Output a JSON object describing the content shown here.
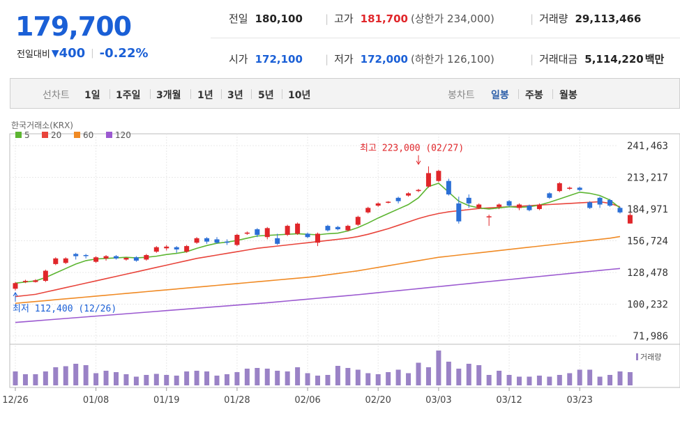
{
  "quote": {
    "price": "179,700",
    "change_label": "전일대비",
    "change_arrow": "▼",
    "change_amount": "400",
    "change_pct": "-0.22%"
  },
  "info": {
    "prev_label": "전일",
    "prev_value": "180,100",
    "high_label": "고가",
    "high_value": "181,700",
    "upper_limit": "(상한가 234,000)",
    "volume_label": "거래량",
    "volume_value": "29,113,466",
    "open_label": "시가",
    "open_value": "172,100",
    "low_label": "저가",
    "low_value": "172,000",
    "lower_limit": "(하한가 126,100)",
    "amount_label": "거래대금",
    "amount_value": "5,114,220",
    "amount_unit": "백만"
  },
  "toolbar": {
    "line_chart": "선차트",
    "periods": [
      "1일",
      "1주일",
      "3개월",
      "1년",
      "3년",
      "5년",
      "10년"
    ],
    "candle_chart": "봉차트",
    "candle_periods": [
      "일봉",
      "주봉",
      "월봉"
    ]
  },
  "chart_data": {
    "type": "candlestick",
    "source": "한국거래소(KRX)",
    "legend": [
      {
        "name": "5",
        "color": "#5cb531"
      },
      {
        "name": "20",
        "color": "#e8443b"
      },
      {
        "name": "60",
        "color": "#f08a24"
      },
      {
        "name": "120",
        "color": "#9b59d0"
      }
    ],
    "y_ticks": [
      "241,463",
      "213,217",
      "184,971",
      "156,724",
      "128,478",
      "100,232",
      "71,986"
    ],
    "ylim": [
      71986,
      241463
    ],
    "x_ticks": [
      "12/26",
      "01/08",
      "01/19",
      "01/28",
      "02/06",
      "02/20",
      "03/03",
      "03/12",
      "03/23"
    ],
    "x_tick_index": [
      0,
      8,
      15,
      22,
      29,
      36,
      42,
      49,
      56
    ],
    "high_annotation": "최고 223,000 (02/27)",
    "high_index": 40,
    "high_value": 223000,
    "low_annotation": "최저 112,400 (12/26)",
    "low_index": 0,
    "low_value": 112400,
    "volume_label": "거래량",
    "candles": [
      {
        "o": 114000,
        "c": 119000,
        "h": 120000,
        "l": 112400
      },
      {
        "o": 120000,
        "c": 121000,
        "h": 122000,
        "l": 119000
      },
      {
        "o": 120000,
        "c": 121500,
        "h": 122500,
        "l": 119500
      },
      {
        "o": 121000,
        "c": 130000,
        "h": 131000,
        "l": 120000
      },
      {
        "o": 136000,
        "c": 141000,
        "h": 142000,
        "l": 135000
      },
      {
        "o": 137000,
        "c": 141000,
        "h": 142000,
        "l": 136000
      },
      {
        "o": 145000,
        "c": 143000,
        "h": 146000,
        "l": 140000
      },
      {
        "o": 144000,
        "c": 143500,
        "h": 145000,
        "l": 141000
      },
      {
        "o": 138000,
        "c": 142000,
        "h": 143000,
        "l": 137000
      },
      {
        "o": 141000,
        "c": 143000,
        "h": 144000,
        "l": 139000
      },
      {
        "o": 143000,
        "c": 141000,
        "h": 144000,
        "l": 140000
      },
      {
        "o": 140000,
        "c": 141500,
        "h": 142000,
        "l": 139000
      },
      {
        "o": 142000,
        "c": 139000,
        "h": 143000,
        "l": 138000
      },
      {
        "o": 140000,
        "c": 144000,
        "h": 145000,
        "l": 139000
      },
      {
        "o": 147000,
        "c": 151000,
        "h": 152000,
        "l": 146000
      },
      {
        "o": 150000,
        "c": 151500,
        "h": 153000,
        "l": 148000
      },
      {
        "o": 151000,
        "c": 149000,
        "h": 152000,
        "l": 146000
      },
      {
        "o": 147000,
        "c": 152000,
        "h": 153000,
        "l": 146000
      },
      {
        "o": 155000,
        "c": 159000,
        "h": 160000,
        "l": 154000
      },
      {
        "o": 159000,
        "c": 156000,
        "h": 160000,
        "l": 154000
      },
      {
        "o": 158000,
        "c": 155000,
        "h": 160000,
        "l": 154000
      },
      {
        "o": 156000,
        "c": 155000,
        "h": 158000,
        "l": 153000
      },
      {
        "o": 153000,
        "c": 162000,
        "h": 163000,
        "l": 152000
      },
      {
        "o": 163000,
        "c": 164000,
        "h": 165000,
        "l": 162000
      },
      {
        "o": 167000,
        "c": 162000,
        "h": 168000,
        "l": 160000
      },
      {
        "o": 160000,
        "c": 168000,
        "h": 169000,
        "l": 158000
      },
      {
        "o": 159000,
        "c": 154000,
        "h": 163000,
        "l": 153000
      },
      {
        "o": 162000,
        "c": 170000,
        "h": 171000,
        "l": 161000
      },
      {
        "o": 163000,
        "c": 172000,
        "h": 173000,
        "l": 162000
      },
      {
        "o": 163000,
        "c": 160000,
        "h": 164000,
        "l": 159000
      },
      {
        "o": 155000,
        "c": 163000,
        "h": 164000,
        "l": 152000
      },
      {
        "o": 170000,
        "c": 166000,
        "h": 171000,
        "l": 165000
      },
      {
        "o": 169000,
        "c": 167000,
        "h": 170000,
        "l": 166000
      },
      {
        "o": 166000,
        "c": 170000,
        "h": 171000,
        "l": 165000
      },
      {
        "o": 171000,
        "c": 178000,
        "h": 179000,
        "l": 170000
      },
      {
        "o": 182000,
        "c": 186000,
        "h": 187000,
        "l": 181000
      },
      {
        "o": 188000,
        "c": 190000,
        "h": 191000,
        "l": 187000
      },
      {
        "o": 191000,
        "c": 191500,
        "h": 192000,
        "l": 190000
      },
      {
        "o": 195000,
        "c": 192000,
        "h": 196000,
        "l": 190000
      },
      {
        "o": 197000,
        "c": 199000,
        "h": 200000,
        "l": 196000
      },
      {
        "o": 201000,
        "c": 202000,
        "h": 203000,
        "l": 200000
      },
      {
        "o": 205000,
        "c": 217000,
        "h": 223000,
        "l": 204000
      },
      {
        "o": 210000,
        "c": 219000,
        "h": 220000,
        "l": 209000
      },
      {
        "o": 210000,
        "c": 198000,
        "h": 212000,
        "l": 197000
      },
      {
        "o": 190000,
        "c": 174000,
        "h": 196000,
        "l": 172000
      },
      {
        "o": 195000,
        "c": 190000,
        "h": 198000,
        "l": 186000
      },
      {
        "o": 186000,
        "c": 189000,
        "h": 190000,
        "l": 185000
      },
      {
        "o": 178000,
        "c": 178500,
        "h": 180000,
        "l": 170000
      },
      {
        "o": 187000,
        "c": 189000,
        "h": 190000,
        "l": 185000
      },
      {
        "o": 192000,
        "c": 188000,
        "h": 193000,
        "l": 187000
      },
      {
        "o": 186000,
        "c": 189000,
        "h": 190000,
        "l": 184000
      },
      {
        "o": 188000,
        "c": 184000,
        "h": 189000,
        "l": 183000
      },
      {
        "o": 185000,
        "c": 189000,
        "h": 190000,
        "l": 184000
      },
      {
        "o": 199000,
        "c": 195000,
        "h": 200000,
        "l": 194000
      },
      {
        "o": 201000,
        "c": 208000,
        "h": 209000,
        "l": 200000
      },
      {
        "o": 203000,
        "c": 204000,
        "h": 205000,
        "l": 202000
      },
      {
        "o": 204000,
        "c": 202000,
        "h": 205000,
        "l": 201000
      },
      {
        "o": 191000,
        "c": 186000,
        "h": 192000,
        "l": 185000
      },
      {
        "o": 195000,
        "c": 189000,
        "h": 196000,
        "l": 186000
      },
      {
        "o": 193000,
        "c": 188000,
        "h": 194000,
        "l": 187000
      },
      {
        "o": 186000,
        "c": 182000,
        "h": 187000,
        "l": 181000
      },
      {
        "o": 172100,
        "c": 179700,
        "h": 181700,
        "l": 172000
      }
    ],
    "ma5": [
      119000,
      120000,
      121000,
      124000,
      128000,
      132000,
      136000,
      139000,
      140500,
      141000,
      141500,
      142000,
      141500,
      142000,
      143000,
      144500,
      145500,
      147000,
      150000,
      152500,
      154500,
      155500,
      157000,
      159000,
      161000,
      161500,
      162000,
      162500,
      163000,
      162500,
      162000,
      163000,
      163500,
      165500,
      168500,
      172500,
      177000,
      181000,
      185000,
      189000,
      195000,
      205000,
      208000,
      200000,
      192000,
      188000,
      186000,
      185000,
      186000,
      187000,
      186500,
      187000,
      188500,
      191000,
      194000,
      197000,
      200000,
      199000,
      197000,
      193000,
      186000
    ],
    "ma20": [
      107000,
      108000,
      109000,
      111000,
      113000,
      115000,
      117000,
      119000,
      121000,
      123000,
      125000,
      127000,
      129000,
      131000,
      133000,
      135000,
      137000,
      139000,
      141000,
      142500,
      144000,
      145500,
      147000,
      148500,
      150000,
      151000,
      152000,
      153000,
      154000,
      155000,
      156000,
      157000,
      158000,
      159000,
      160500,
      162500,
      165000,
      167500,
      170500,
      173500,
      176500,
      179000,
      181000,
      182500,
      183500,
      184500,
      185500,
      186000,
      186500,
      187000,
      187500,
      188000,
      188500,
      189000,
      189500,
      190000,
      190500,
      191000,
      191500,
      190000,
      187000
    ],
    "ma60": [
      101000,
      101800,
      102600,
      103400,
      104200,
      105000,
      105800,
      106600,
      107400,
      108200,
      109000,
      109800,
      110600,
      111400,
      112200,
      113000,
      113800,
      114600,
      115400,
      116200,
      117000,
      117800,
      118600,
      119400,
      120200,
      121000,
      121800,
      122600,
      123400,
      124200,
      125200,
      126400,
      127600,
      128800,
      130000,
      131500,
      133000,
      134500,
      136000,
      137500,
      139000,
      140500,
      142000,
      143000,
      144000,
      145000,
      146000,
      147000,
      148000,
      149000,
      150000,
      151000,
      152000,
      153000,
      154000,
      155000,
      156000,
      157000,
      158000,
      159000,
      160500
    ],
    "ma120": [
      84000,
      84700,
      85400,
      86100,
      86800,
      87500,
      88200,
      88900,
      89600,
      90300,
      91000,
      91700,
      92400,
      93100,
      93800,
      94500,
      95200,
      95900,
      96600,
      97300,
      98000,
      98700,
      99400,
      100100,
      100800,
      101500,
      102300,
      103100,
      103900,
      104700,
      105500,
      106300,
      107100,
      107900,
      108700,
      109600,
      110500,
      111400,
      112300,
      113200,
      114100,
      115000,
      115900,
      116800,
      117700,
      118600,
      119500,
      120400,
      121300,
      122200,
      123100,
      124000,
      124900,
      125800,
      126700,
      127600,
      128500,
      129400,
      130300,
      131200,
      132000
    ],
    "volumes": [
      0.4,
      0.32,
      0.32,
      0.4,
      0.52,
      0.55,
      0.62,
      0.58,
      0.35,
      0.42,
      0.38,
      0.32,
      0.25,
      0.3,
      0.33,
      0.3,
      0.28,
      0.4,
      0.42,
      0.4,
      0.28,
      0.32,
      0.38,
      0.48,
      0.5,
      0.48,
      0.42,
      0.4,
      0.52,
      0.35,
      0.28,
      0.3,
      0.56,
      0.5,
      0.45,
      0.35,
      0.32,
      0.38,
      0.45,
      0.35,
      0.65,
      0.52,
      1.0,
      0.68,
      0.48,
      0.62,
      0.58,
      0.3,
      0.42,
      0.3,
      0.25,
      0.25,
      0.28,
      0.25,
      0.3,
      0.35,
      0.45,
      0.45,
      0.25,
      0.3,
      0.4,
      0.38
    ]
  }
}
